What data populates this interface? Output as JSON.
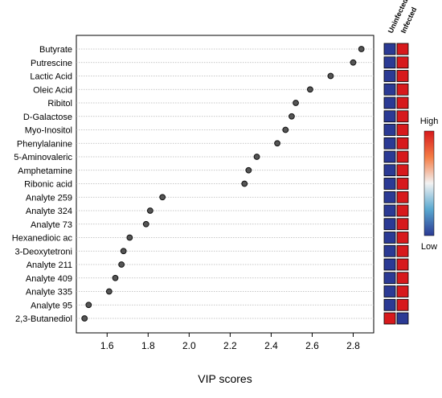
{
  "chart_data": {
    "type": "scatter",
    "xlabel": "VIP scores",
    "xlim": [
      1.45,
      2.9
    ],
    "x_ticks": [
      1.6,
      1.8,
      2.0,
      2.2,
      2.4,
      2.6,
      2.8
    ],
    "grid": "horizontal dotted lines",
    "categories": [
      "Butyrate",
      "Putrescine",
      "Lactic Acid",
      "Oleic Acid",
      "Ribitol",
      "D-Galactose",
      "Myo-Inositol",
      "Phenylalanine",
      "5-Aminovaleric",
      "Amphetamine",
      "Ribonic acid",
      "Analyte 259",
      "Analyte 324",
      "Analyte 73",
      "Hexanedioic ac",
      "3-Deoxytetroni",
      "Analyte 211",
      "Analyte 409",
      "Analyte 335",
      "Analyte 95",
      "2,3-Butanediol"
    ],
    "values": [
      2.84,
      2.8,
      2.69,
      2.59,
      2.52,
      2.5,
      2.47,
      2.43,
      2.33,
      2.29,
      2.27,
      1.87,
      1.81,
      1.79,
      1.71,
      1.68,
      1.67,
      1.64,
      1.61,
      1.51,
      1.49
    ],
    "heatmap": {
      "columns": [
        "Uninfected",
        "Infected"
      ],
      "levels": [
        [
          "Low",
          "High"
        ],
        [
          "Low",
          "High"
        ],
        [
          "Low",
          "High"
        ],
        [
          "Low",
          "High"
        ],
        [
          "Low",
          "High"
        ],
        [
          "Low",
          "High"
        ],
        [
          "Low",
          "High"
        ],
        [
          "Low",
          "High"
        ],
        [
          "Low",
          "High"
        ],
        [
          "Low",
          "High"
        ],
        [
          "Low",
          "High"
        ],
        [
          "Low",
          "High"
        ],
        [
          "Low",
          "High"
        ],
        [
          "Low",
          "High"
        ],
        [
          "Low",
          "High"
        ],
        [
          "Low",
          "High"
        ],
        [
          "Low",
          "High"
        ],
        [
          "Low",
          "High"
        ],
        [
          "Low",
          "High"
        ],
        [
          "Low",
          "High"
        ],
        [
          "High",
          "Low"
        ]
      ]
    },
    "colorbar": {
      "high_label": "High",
      "low_label": "Low"
    },
    "colors": {
      "high": "#d7191c",
      "low": "#2b3a94",
      "mid": "#f2f2f2",
      "point": "#555555"
    }
  }
}
